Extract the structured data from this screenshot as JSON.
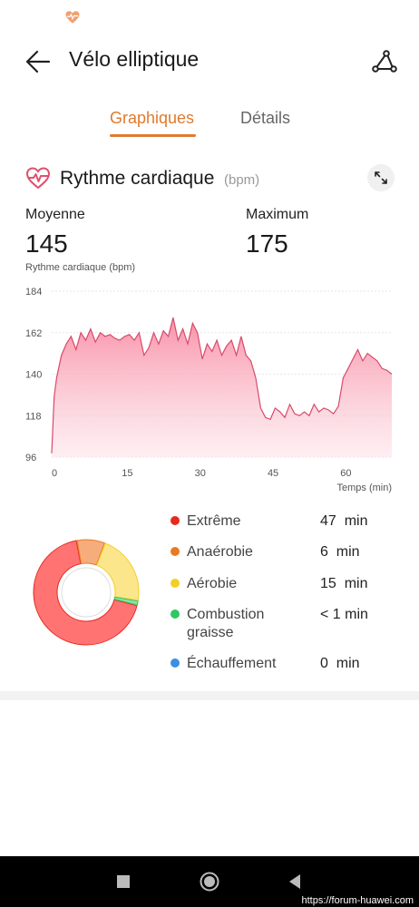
{
  "status_bar": {
    "icon": "heart-rate-icon"
  },
  "app_bar": {
    "back_icon": "arrow-left-icon",
    "title": "Vélo elliptique",
    "route_icon": "route-icon"
  },
  "tabs": [
    {
      "label": "Graphiques",
      "active": true
    },
    {
      "label": "Détails",
      "active": false
    }
  ],
  "heart_rate": {
    "icon": "heart-pulse-icon",
    "title": "Rythme cardiaque",
    "unit": "(bpm)",
    "expand_icon": "expand-icon",
    "average_label": "Moyenne",
    "average_value": "145",
    "max_label": "Maximum",
    "max_value": "175"
  },
  "chart_data": {
    "type": "area",
    "ylabel": "Rythme cardiaque (bpm)",
    "xlabel": "Temps (min)",
    "ylim": [
      96,
      184
    ],
    "yticks": [
      "184",
      "162",
      "140",
      "118",
      "96"
    ],
    "xlim": [
      0,
      70
    ],
    "xticks": [
      "0",
      "15",
      "30",
      "45",
      "60"
    ],
    "grid": true,
    "color": "#e0607e",
    "x": [
      0,
      0.5,
      1,
      2,
      3,
      4,
      5,
      6,
      7,
      8,
      9,
      10,
      11,
      12,
      13,
      14,
      15,
      16,
      17,
      18,
      19,
      20,
      21,
      22,
      23,
      24,
      25,
      26,
      27,
      28,
      29,
      30,
      31,
      32,
      33,
      34,
      35,
      36,
      37,
      38,
      39,
      40,
      41,
      42,
      43,
      44,
      45,
      46,
      47,
      48,
      49,
      50,
      51,
      52,
      53,
      54,
      55,
      56,
      57,
      58,
      59,
      60,
      61,
      62,
      63,
      64,
      65,
      66,
      67,
      68,
      69,
      70
    ],
    "series": [
      {
        "values": [
          98,
          128,
          138,
          150,
          156,
          160,
          153,
          162,
          158,
          164,
          157,
          162,
          160,
          161,
          159,
          158,
          160,
          161,
          158,
          162,
          150,
          154,
          162,
          156,
          163,
          160,
          170,
          158,
          164,
          156,
          167,
          162,
          148,
          156,
          152,
          158,
          150,
          155,
          158,
          150,
          160,
          150,
          147,
          138,
          122,
          117,
          116,
          122,
          120,
          117,
          124,
          119,
          118,
          120,
          118,
          124,
          120,
          122,
          121,
          119,
          123,
          138,
          143,
          148,
          153,
          147,
          151,
          149,
          147,
          143,
          142,
          140
        ]
      }
    ]
  },
  "zones": {
    "items": [
      {
        "name": "Extrême",
        "value": "47  min",
        "minutes": 47,
        "color": "#ff7373",
        "dot": "#e8291f"
      },
      {
        "name": "Anaérobie",
        "value": "6  min",
        "minutes": 6,
        "color": "#f6ad7b",
        "dot": "#ea7a21"
      },
      {
        "name": "Aérobie",
        "value": "15  min",
        "minutes": 15,
        "color": "#fbe68c",
        "dot": "#f3cf26"
      },
      {
        "name": "Combustion graisse",
        "value": "< 1 min",
        "minutes": 1,
        "color": "#8de3a8",
        "dot": "#2ec862"
      },
      {
        "name": "Échauffement",
        "value": "0  min",
        "minutes": 0,
        "color": "#8fc4ef",
        "dot": "#3d8fe0"
      }
    ]
  },
  "nav_bar": {
    "recent_icon": "square-icon",
    "home_icon": "circle-home-icon",
    "back_icon": "triangle-back-icon",
    "watermark": "https://forum-huawei.com"
  }
}
